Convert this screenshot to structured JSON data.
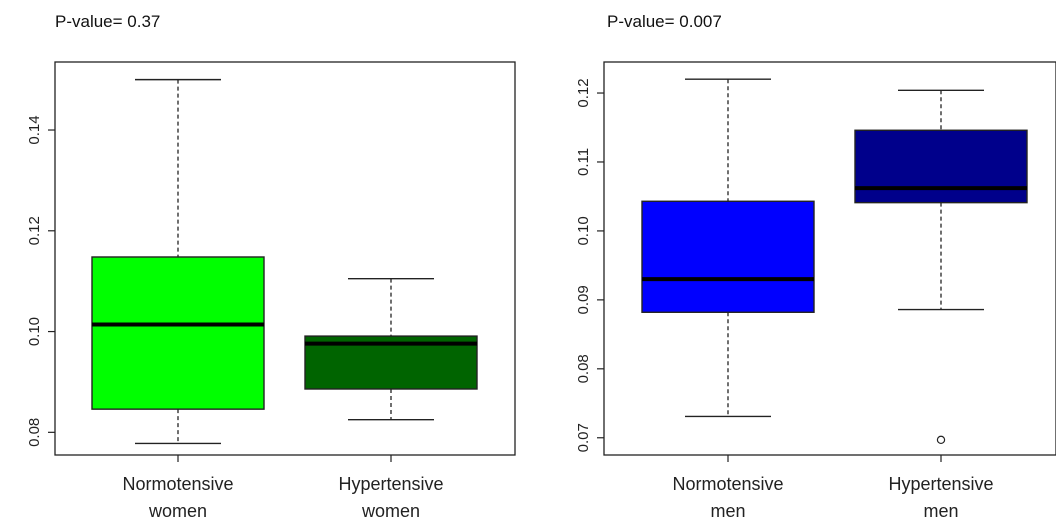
{
  "chart_data": [
    {
      "type": "box",
      "title": "P-value= 0.37",
      "categories": [
        "Normotensive women",
        "Hypertensive women"
      ],
      "category_lines": [
        [
          "Normotensive",
          "women"
        ],
        [
          "Hypertensive",
          "women"
        ]
      ],
      "yticks": [
        "0.08",
        "0.10",
        "0.12",
        "0.14"
      ],
      "ytick_values": [
        0.08,
        0.1,
        0.12,
        0.14
      ],
      "ylim": [
        0.0755,
        0.1535
      ],
      "boxes": [
        {
          "name": "Normotensive women",
          "whisker_low": 0.0778,
          "q1": 0.0846,
          "median": 0.1014,
          "q3": 0.1148,
          "whisker_high": 0.15,
          "outliers": [],
          "color": "#00ff00"
        },
        {
          "name": "Hypertensive women",
          "whisker_low": 0.0825,
          "q1": 0.0886,
          "median": 0.0976,
          "q3": 0.0991,
          "whisker_high": 0.1105,
          "outliers": [],
          "color": "#006400"
        }
      ]
    },
    {
      "type": "box",
      "title": "P-value= 0.007",
      "categories": [
        "Normotensive men",
        "Hypertensive men"
      ],
      "category_lines": [
        [
          "Normotensive",
          "men"
        ],
        [
          "Hypertensive",
          "men"
        ]
      ],
      "yticks": [
        "0.07",
        "0.08",
        "0.09",
        "0.10",
        "0.11",
        "0.12"
      ],
      "ytick_values": [
        0.07,
        0.08,
        0.09,
        0.1,
        0.11,
        0.12
      ],
      "ylim": [
        0.0675,
        0.1245
      ],
      "boxes": [
        {
          "name": "Normotensive men",
          "whisker_low": 0.0731,
          "q1": 0.0882,
          "median": 0.093,
          "q3": 0.1043,
          "whisker_high": 0.122,
          "outliers": [],
          "color": "#0000ff"
        },
        {
          "name": "Hypertensive men",
          "whisker_low": 0.0886,
          "q1": 0.1041,
          "median": 0.1062,
          "q3": 0.1146,
          "whisker_high": 0.1204,
          "outliers": [
            0.0697
          ],
          "color": "#00008b"
        }
      ]
    }
  ]
}
